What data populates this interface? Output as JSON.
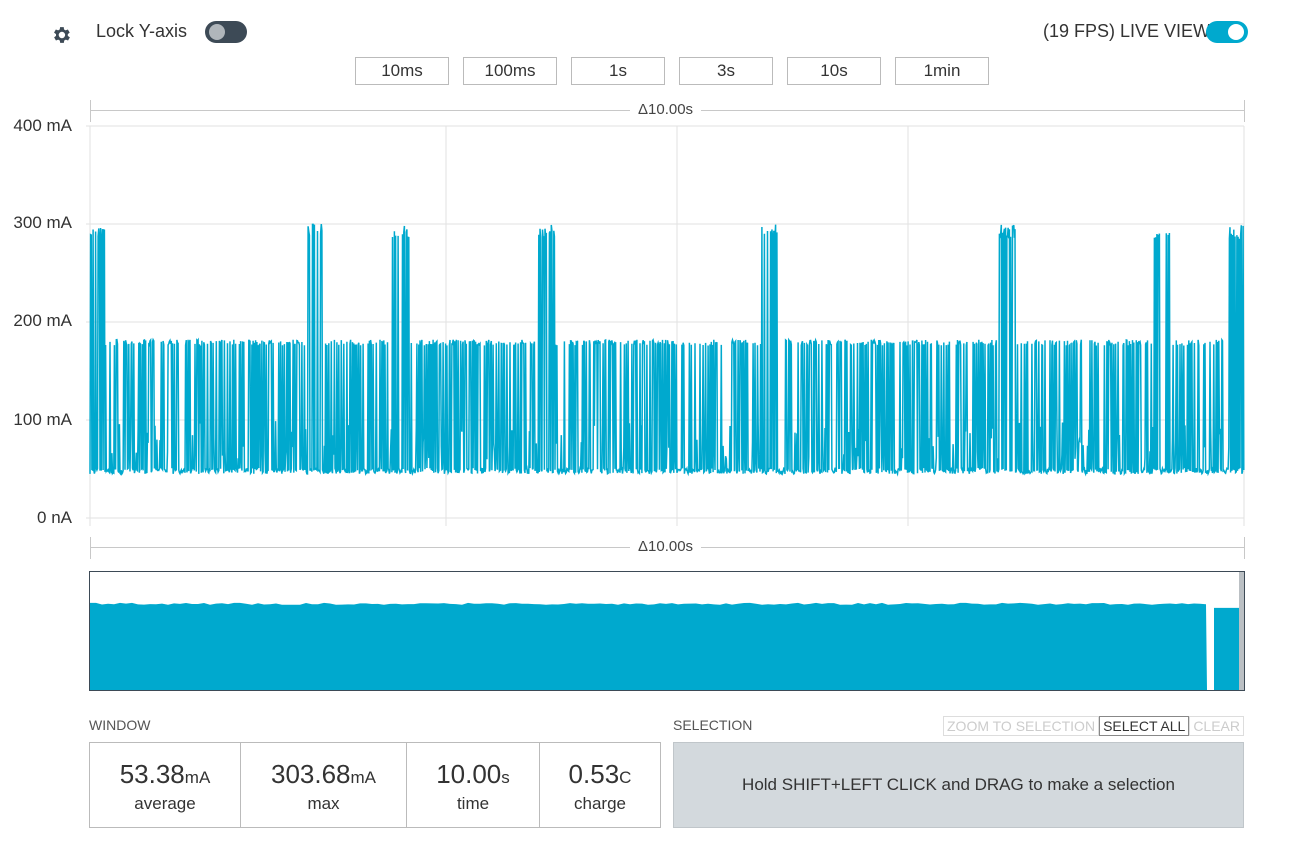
{
  "header": {
    "settings_icon": "gear-icon",
    "lock_label": "Lock Y-axis",
    "lock_on": false,
    "fps_label": "(19 FPS) LIVE VIEW",
    "live_on": true,
    "timespans": [
      "10ms",
      "100ms",
      "1s",
      "3s",
      "10s",
      "1min"
    ]
  },
  "colors": {
    "accent": "#00a9ce",
    "toggle_off": "#3d4a56"
  },
  "chart_data": {
    "type": "line",
    "title": "",
    "xlabel": "",
    "ylabel": "",
    "delta_top": "Δ10.00s",
    "delta_bottom": "Δ10.00s",
    "ylim": [
      0,
      400
    ],
    "y_ticks": [
      "0 nA",
      "100 mA",
      "200 mA",
      "300 mA",
      "400 mA"
    ],
    "x_range_s": [
      0,
      10
    ],
    "grid": true,
    "series": [
      {
        "baseline_mA": 45,
        "pulse_mA": 182,
        "burst_peak_mA": 300,
        "burst_times_s": [
          0.05,
          1.95,
          2.7,
          3.95,
          5.9,
          7.95,
          9.3,
          9.95
        ]
      }
    ]
  },
  "overview": {
    "level_fraction": 0.73
  },
  "window": {
    "label": "WINDOW",
    "stats": [
      {
        "value": "53.38",
        "unit": "mA",
        "label": "average"
      },
      {
        "value": "303.68",
        "unit": "mA",
        "label": "max"
      },
      {
        "value": "10.00",
        "unit": "s",
        "label": "time"
      },
      {
        "value": "0.53",
        "unit": "C",
        "label": "charge"
      }
    ]
  },
  "selection": {
    "label": "SELECTION",
    "zoom_label": "ZOOM TO SELECTION",
    "select_all_label": "SELECT ALL",
    "clear_label": "CLEAR",
    "hint": "Hold SHIFT+LEFT CLICK and DRAG to make a selection"
  }
}
